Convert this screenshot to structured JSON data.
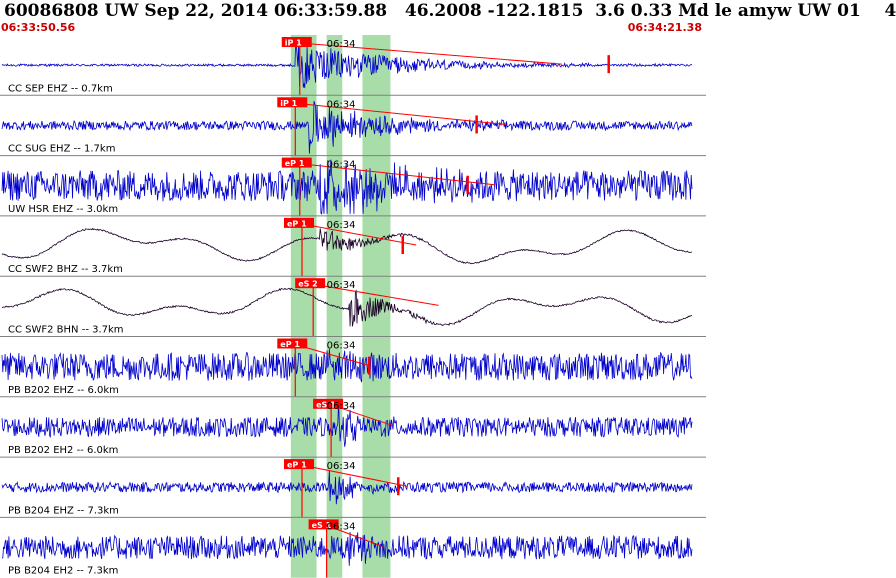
{
  "header": {
    "title": "60086808 UW Sep 22, 2014 06:33:59.88   46.2008 -122.1815  3.6 0.33 Md le amyw UW 01    4",
    "start_time": "06:33:50.56",
    "end_time": "06:34:21.38"
  },
  "chart_data": {
    "type": "waveform",
    "time_window": [
      "06:33:50.56",
      "06:34:21.38"
    ],
    "duration_s": 30.82,
    "tick_time_label": "06:34",
    "colors": {
      "trace": "#0000cc",
      "broadband_trace": "#1a0026",
      "pick": "#ff0000",
      "window": "#a8dca8",
      "divider": "#808080"
    },
    "windows": [
      {
        "t0": 12.9,
        "t1": 14.05
      },
      {
        "t0": 14.5,
        "t1": 15.2
      },
      {
        "t0": 16.1,
        "t1": 17.35
      }
    ],
    "traces": [
      {
        "label": "CC SEP EHZ -- 0.7km",
        "pick": "iP 1",
        "pick_t": 13.3,
        "onset_t": 13.1,
        "coda_end_t": 25.0,
        "amp": 0.9,
        "noise": 0.04,
        "kind": "short",
        "spike_t": 27.1
      },
      {
        "label": "CC SUG EHZ -- 1.7km",
        "pick": "iP 1",
        "pick_t": 13.1,
        "onset_t": 13.7,
        "coda_end_t": 22.5,
        "amp": 0.9,
        "noise": 0.16,
        "kind": "short",
        "spike_t": 21.2
      },
      {
        "label": "UW HSR EHZ -- 3.0km",
        "pick": "eP 1",
        "pick_t": 13.3,
        "onset_t": 14.2,
        "coda_end_t": 22.0,
        "amp": 1.15,
        "noise": 0.55,
        "kind": "short",
        "spike_t": 20.8
      },
      {
        "label": "CC SWF2 BHZ -- 3.7km",
        "pick": "eP 1",
        "pick_t": 13.4,
        "onset_t": 14.2,
        "coda_end_t": 18.5,
        "amp": 0.55,
        "noise": 0.05,
        "kind": "broad",
        "spike_t": 17.9
      },
      {
        "label": "CC SWF2 BHN -- 3.7km",
        "pick": "eS 2",
        "pick_t": 13.9,
        "onset_t": 15.5,
        "coda_end_t": 19.5,
        "amp": 0.85,
        "noise": 0.06,
        "kind": "broad",
        "spike_t": null
      },
      {
        "label": "PB B202 EHZ -- 6.0km",
        "pick": "eP 1",
        "pick_t": 13.1,
        "onset_t": 14.5,
        "coda_end_t": 16.4,
        "amp": 0.8,
        "noise": 0.5,
        "kind": "short",
        "spike_t": 16.4
      },
      {
        "label": "PB B202 EH2 -- 6.0km",
        "pick": "eS 1",
        "pick_t": 14.7,
        "onset_t": 15.0,
        "coda_end_t": 17.5,
        "amp": 0.7,
        "noise": 0.35,
        "kind": "short",
        "spike_t": null
      },
      {
        "label": "PB B204 EHZ -- 7.3km",
        "pick": "eP 1",
        "pick_t": 13.4,
        "onset_t": 14.6,
        "coda_end_t": 18.1,
        "amp": 0.7,
        "noise": 0.18,
        "kind": "short",
        "spike_t": 17.7
      },
      {
        "label": "PB B204 EH2 -- 7.3km",
        "pick": "eS 1",
        "pick_t": 14.5,
        "onset_t": 15.5,
        "coda_end_t": 17.0,
        "amp": 0.7,
        "noise": 0.42,
        "kind": "short",
        "spike_t": null
      }
    ]
  }
}
